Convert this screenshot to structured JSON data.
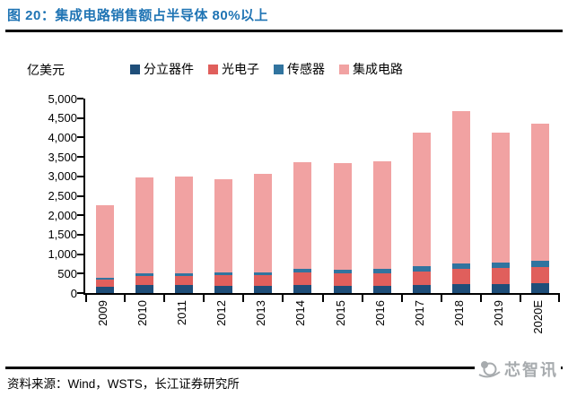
{
  "header": {
    "title": "图 20：集成电路销售额占半导体 80%以上"
  },
  "chart_data": {
    "type": "bar",
    "stacked": true,
    "title": "图 20：集成电路销售额占半导体 80%以上",
    "ylabel": "亿美元",
    "xlabel": "",
    "categories": [
      "2009",
      "2010",
      "2011",
      "2012",
      "2013",
      "2014",
      "2015",
      "2016",
      "2017",
      "2018",
      "2019",
      "2020E"
    ],
    "series": [
      {
        "name": "分立器件",
        "color": "#1F4E79",
        "values": [
          156,
          215,
          199,
          189,
          180,
          202,
          186,
          194,
          216,
          241,
          239,
          245
        ]
      },
      {
        "name": "光电子",
        "color": "#E05F5C",
        "values": [
          191,
          228,
          232,
          262,
          276,
          330,
          333,
          323,
          348,
          380,
          416,
          430
        ]
      },
      {
        "name": "传感器",
        "color": "#31749F",
        "values": [
          56,
          70,
          73,
          79,
          80,
          85,
          88,
          109,
          126,
          134,
          135,
          150
        ]
      },
      {
        "name": "集成电路",
        "color": "#F1A2A2",
        "values": [
          1861,
          2470,
          2491,
          2386,
          2519,
          2742,
          2745,
          2763,
          3432,
          3933,
          3332,
          3525
        ]
      }
    ],
    "totals": [
      2264,
      2983,
      2995,
      2916,
      3055,
      3359,
      3352,
      3389,
      4122,
      4688,
      4122,
      4350
    ],
    "ylim": [
      0,
      5000
    ],
    "ytick_step": 500,
    "ytick_labels_top_down": [
      "5,000",
      "4,500",
      "4,000",
      "3,500",
      "3,000",
      "2,500",
      "2,000",
      "1,500",
      "1,000",
      "500",
      "0"
    ],
    "legend_position": "top",
    "grid": false
  },
  "footer": {
    "source": "资料来源：Wind，WSTS，长江证券研究所",
    "logo_text": "芯智讯"
  },
  "colors": {
    "title_blue": "#1F74B4",
    "axis_black": "#000000",
    "logo_grey": "#A7ABAE"
  }
}
